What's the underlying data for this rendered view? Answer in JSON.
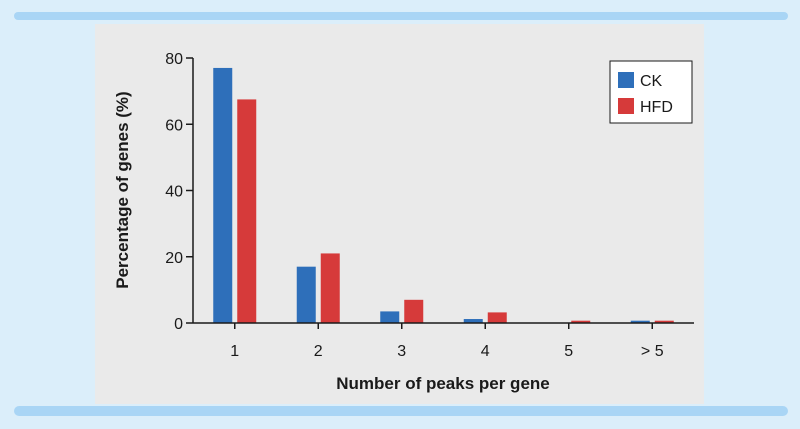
{
  "chart_data": {
    "type": "bar",
    "title": "",
    "xlabel": "Number of peaks per gene",
    "ylabel": "Percentage of genes (%)",
    "categories": [
      "1",
      "2",
      "3",
      "4",
      "5",
      "> 5"
    ],
    "ylim": [
      0,
      80
    ],
    "yticks": [
      0,
      20,
      40,
      60,
      80
    ],
    "grid": false,
    "legend_position": "top-right",
    "series": [
      {
        "name": "CK",
        "color": "#2e6fba",
        "values": [
          77,
          17,
          3.5,
          1.2,
          0.1,
          0.7
        ]
      },
      {
        "name": "HFD",
        "color": "#d63a3a",
        "values": [
          67.5,
          21,
          7,
          3.2,
          0.7,
          0.7
        ]
      }
    ]
  }
}
